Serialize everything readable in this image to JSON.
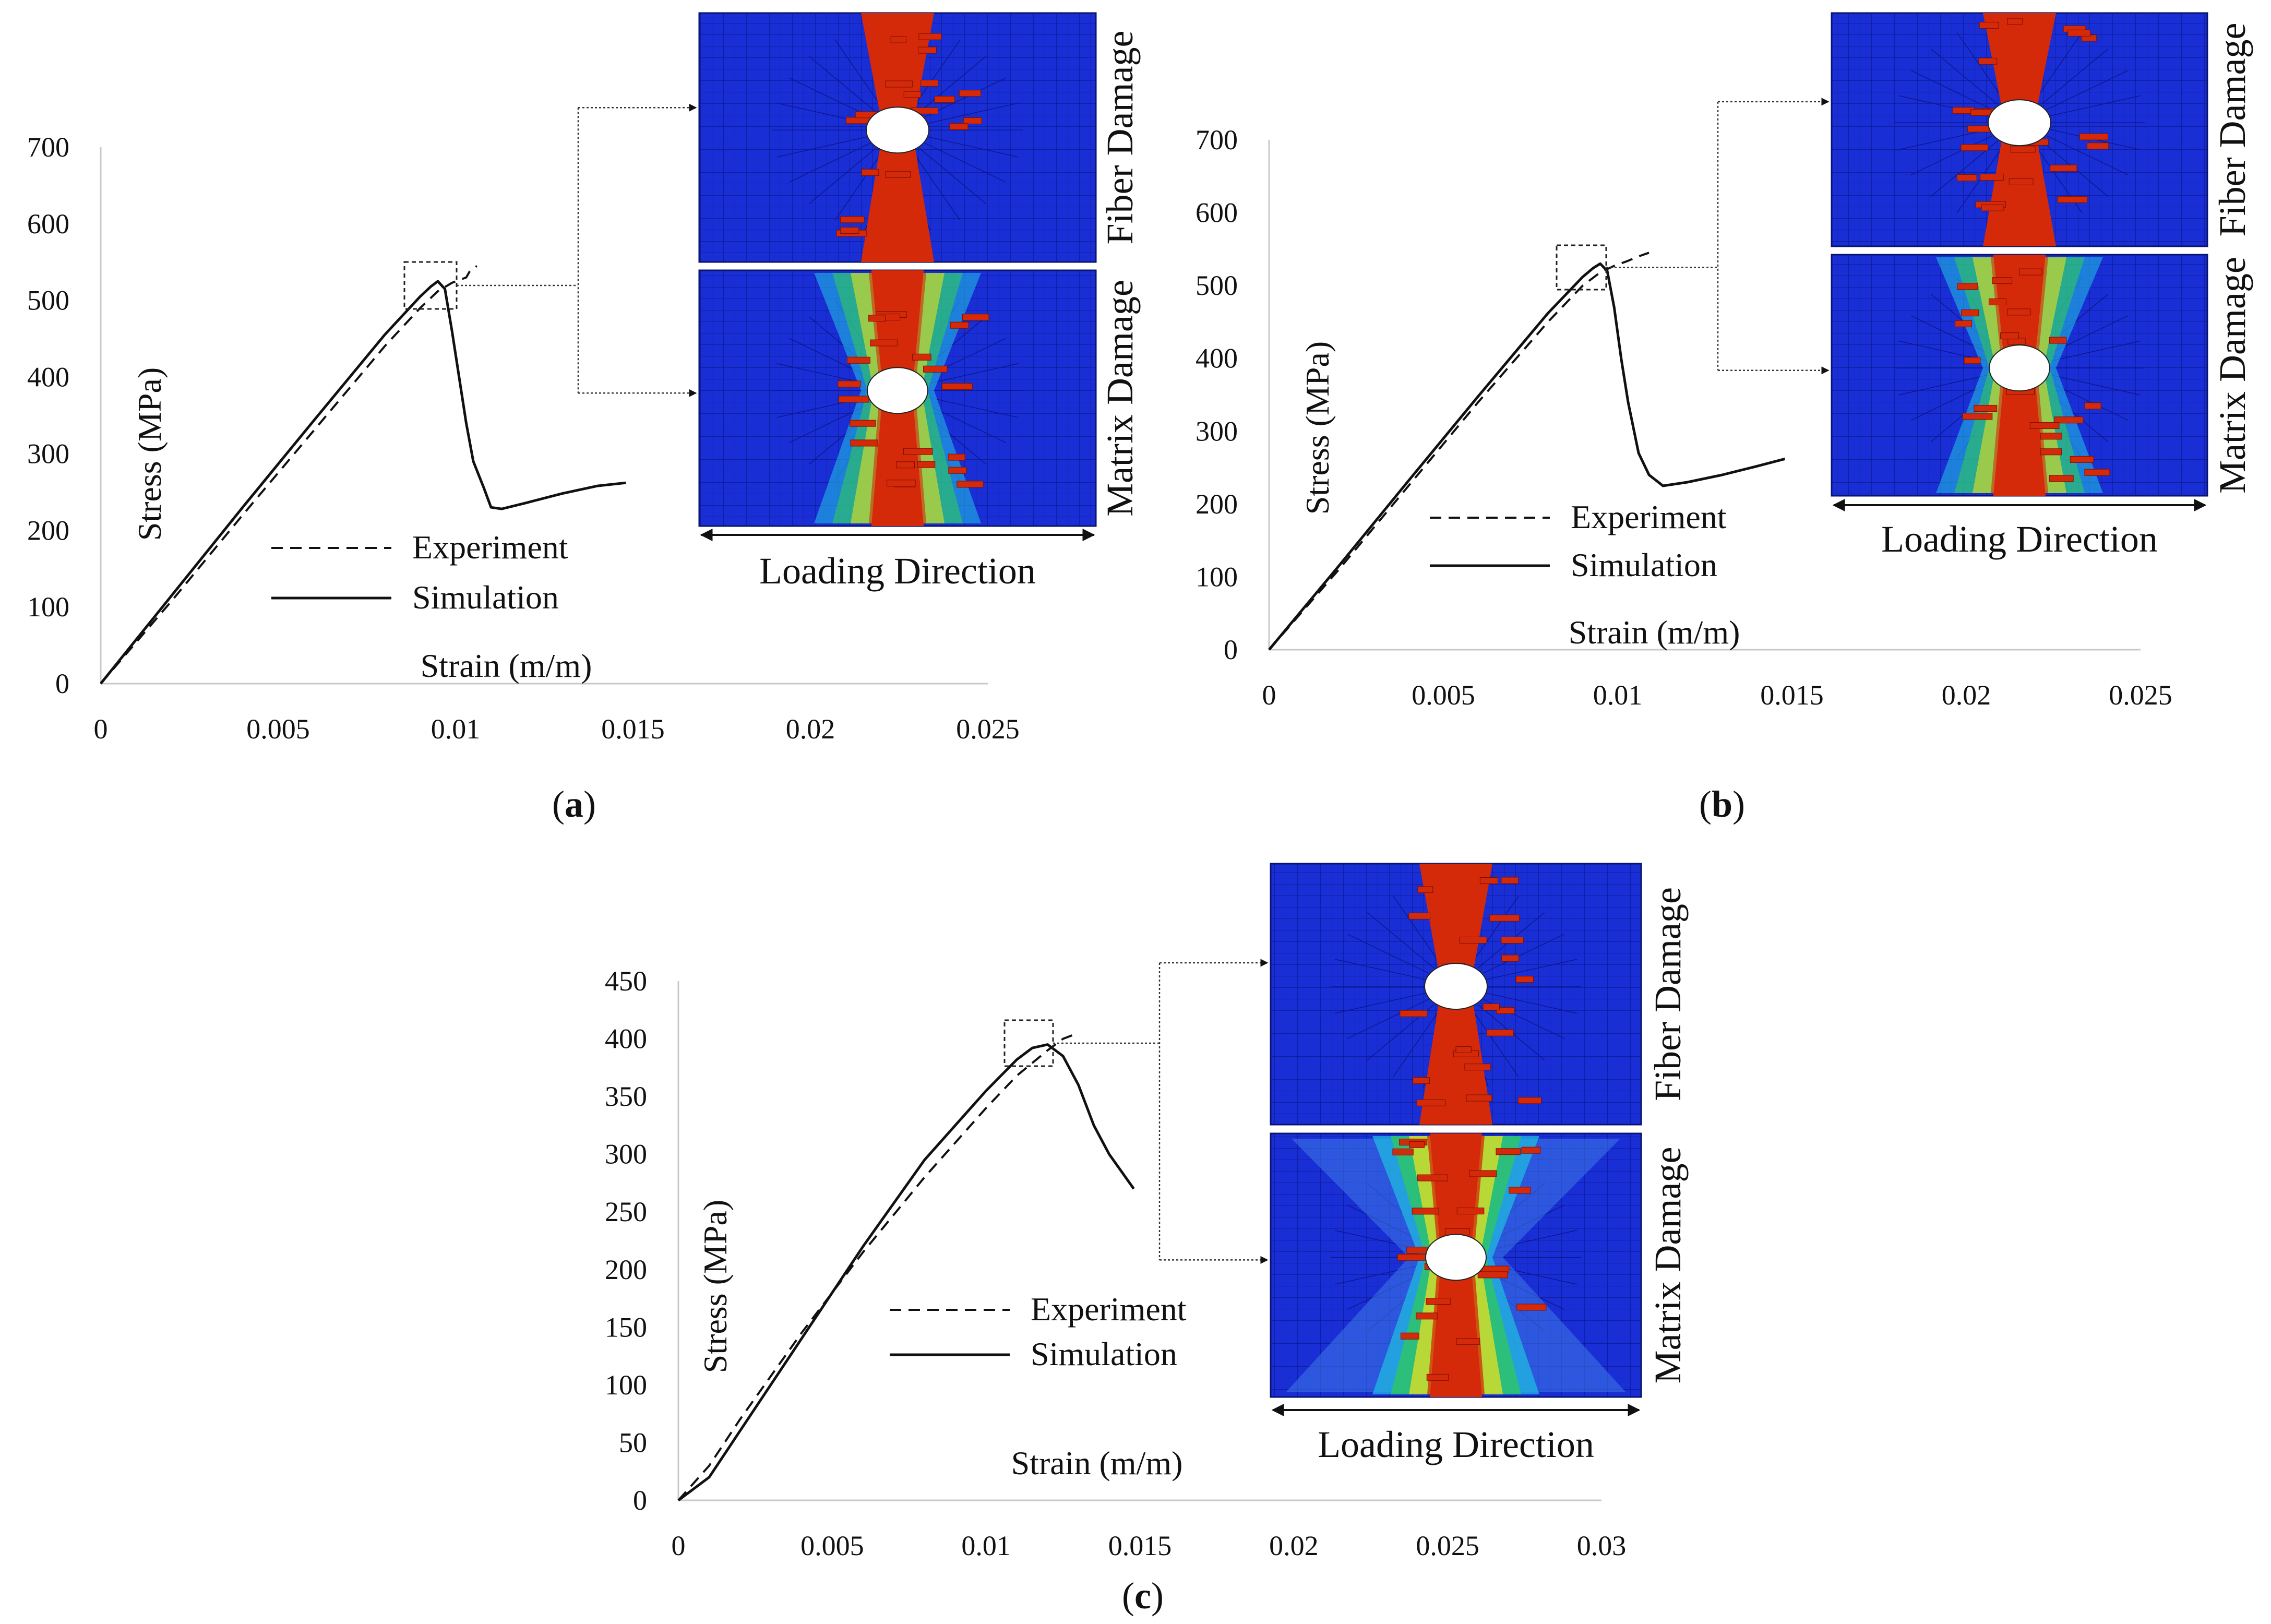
{
  "chart_data": [
    {
      "panel_label": "a",
      "type": "line",
      "xlabel": "Strain (m/m)",
      "ylabel": "Stress (MPa)",
      "xlim": [
        0,
        0.025
      ],
      "ylim": [
        0,
        700
      ],
      "x_ticks": [
        0,
        0.005,
        0.01,
        0.015,
        0.02,
        0.025
      ],
      "x_tick_labels": [
        "0",
        "0.005",
        "0.01",
        "0.015",
        "0.02",
        "0.025"
      ],
      "y_ticks": [
        0,
        100,
        200,
        300,
        400,
        500,
        600,
        700
      ],
      "y_tick_labels": [
        "0",
        "100",
        "200",
        "300",
        "400",
        "500",
        "600",
        "700"
      ],
      "grid": false,
      "legend": "center-left",
      "series": [
        {
          "name": "Experiment",
          "style": "dashed",
          "x": [
            0,
            0.002,
            0.004,
            0.006,
            0.008,
            0.009,
            0.0095,
            0.0099,
            0.0103,
            0.0104,
            0.0106
          ],
          "y": [
            0,
            108,
            220,
            330,
            440,
            490,
            512,
            523,
            530,
            538,
            545
          ]
        },
        {
          "name": "Simulation",
          "style": "solid",
          "x": [
            0,
            0.002,
            0.004,
            0.006,
            0.008,
            0.009,
            0.0093,
            0.0095,
            0.0097,
            0.0099,
            0.0101,
            0.0103,
            0.0105,
            0.0108,
            0.011,
            0.0113,
            0.012,
            0.013,
            0.014,
            0.0148
          ],
          "y": [
            0,
            115,
            230,
            343,
            455,
            505,
            518,
            525,
            515,
            460,
            400,
            340,
            290,
            255,
            230,
            228,
            236,
            248,
            258,
            262
          ]
        }
      ],
      "inset": {
        "callout": "peak",
        "images": [
          {
            "label": "Fiber Damage"
          },
          {
            "label": "Matrix Damage"
          }
        ],
        "direction_label": "Loading Direction"
      }
    },
    {
      "panel_label": "b",
      "type": "line",
      "xlabel": "Strain (m/m)",
      "ylabel": "Stress (MPa)",
      "xlim": [
        0,
        0.025
      ],
      "ylim": [
        0,
        700
      ],
      "x_ticks": [
        0,
        0.005,
        0.01,
        0.015,
        0.02,
        0.025
      ],
      "x_tick_labels": [
        "0",
        "0.005",
        "0.01",
        "0.015",
        "0.02",
        "0.025"
      ],
      "y_ticks": [
        0,
        100,
        200,
        300,
        400,
        500,
        600,
        700
      ],
      "y_tick_labels": [
        "0",
        "100",
        "200",
        "300",
        "400",
        "500",
        "600",
        "700"
      ],
      "grid": false,
      "legend": "center",
      "series": [
        {
          "name": "Experiment",
          "style": "dashed",
          "x": [
            0,
            0.002,
            0.004,
            0.006,
            0.008,
            0.009,
            0.0095,
            0.0099,
            0.0103,
            0.0106,
            0.0109
          ],
          "y": [
            0,
            110,
            225,
            340,
            450,
            500,
            518,
            527,
            534,
            540,
            545
          ]
        },
        {
          "name": "Simulation",
          "style": "solid",
          "x": [
            0,
            0.002,
            0.004,
            0.006,
            0.008,
            0.009,
            0.0093,
            0.0095,
            0.0097,
            0.0099,
            0.0101,
            0.0103,
            0.0106,
            0.0109,
            0.0113,
            0.012,
            0.013,
            0.014,
            0.0148
          ],
          "y": [
            0,
            115,
            232,
            348,
            462,
            512,
            524,
            530,
            520,
            470,
            400,
            340,
            270,
            240,
            225,
            230,
            240,
            252,
            262
          ]
        }
      ],
      "inset": {
        "callout": "peak",
        "images": [
          {
            "label": "Fiber Damage"
          },
          {
            "label": "Matrix Damage"
          }
        ],
        "direction_label": "Loading Direction"
      }
    },
    {
      "panel_label": "c",
      "type": "line",
      "xlabel": "Strain (m/m)",
      "ylabel": "Stress (MPa)",
      "xlim": [
        0,
        0.03
      ],
      "ylim": [
        0,
        450
      ],
      "x_ticks": [
        0,
        0.005,
        0.01,
        0.015,
        0.02,
        0.025,
        0.03
      ],
      "x_tick_labels": [
        "0",
        "0.005",
        "0.01",
        "0.015",
        "0.02",
        "0.025",
        "0.03"
      ],
      "y_ticks": [
        0,
        50,
        100,
        150,
        200,
        250,
        300,
        350,
        400,
        450
      ],
      "y_tick_labels": [
        "0",
        "50",
        "100",
        "150",
        "200",
        "250",
        "300",
        "350",
        "400",
        "450"
      ],
      "grid": false,
      "legend": "center",
      "series": [
        {
          "name": "Experiment",
          "style": "dashed",
          "x": [
            0,
            0.001,
            0.002,
            0.004,
            0.006,
            0.008,
            0.01,
            0.011,
            0.012,
            0.0125,
            0.013
          ],
          "y": [
            0,
            30,
            70,
            145,
            215,
            280,
            340,
            368,
            390,
            400,
            405
          ]
        },
        {
          "name": "Simulation",
          "style": "solid",
          "x": [
            0,
            0.001,
            0.002,
            0.004,
            0.006,
            0.008,
            0.01,
            0.011,
            0.0115,
            0.012,
            0.0125,
            0.013,
            0.0135,
            0.014,
            0.0148
          ],
          "y": [
            0,
            20,
            60,
            140,
            220,
            295,
            355,
            382,
            392,
            395,
            385,
            360,
            325,
            300,
            270
          ]
        }
      ],
      "inset": {
        "callout": "peak",
        "images": [
          {
            "label": "Fiber Damage"
          },
          {
            "label": "Matrix Damage"
          }
        ],
        "direction_label": "Loading Direction"
      }
    }
  ],
  "colors": {
    "mesh_blue": "#1a2ed6",
    "damage_red": "#d42a0a",
    "mid_green": "#30c85a",
    "mid_yellow": "#e6e020",
    "mid_cyan": "#20b8e0",
    "light_blue": "#3c7ae6",
    "ink": "#111111"
  }
}
